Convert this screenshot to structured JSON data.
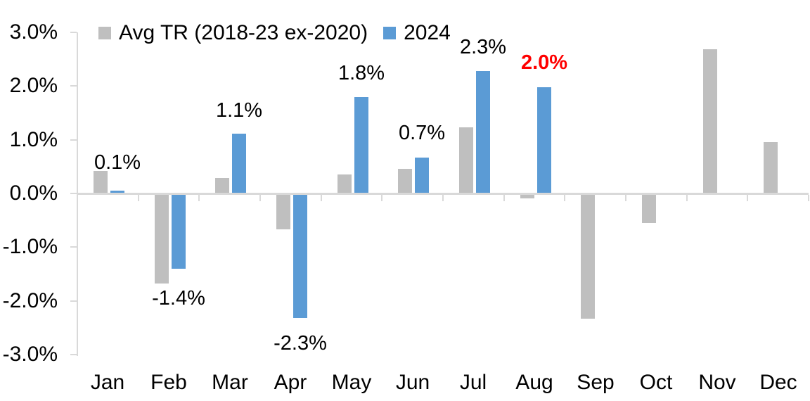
{
  "chart_data": {
    "type": "bar",
    "title": "",
    "categories": [
      "Jan",
      "Feb",
      "Mar",
      "Apr",
      "May",
      "Jun",
      "Jul",
      "Aug",
      "Sep",
      "Oct",
      "Nov",
      "Dec"
    ],
    "series": [
      {
        "name": "Avg TR (2018-23 ex-2020)",
        "color": "#BFBFBF",
        "values": [
          0.43,
          -1.67,
          0.3,
          -0.66,
          0.36,
          0.46,
          1.24,
          -0.08,
          -2.32,
          -0.54,
          2.69,
          0.96
        ]
      },
      {
        "name": "2024",
        "color": "#5B9BD5",
        "values": [
          0.06,
          -1.4,
          1.12,
          -2.31,
          1.8,
          0.68,
          2.29,
          1.99,
          null,
          null,
          null,
          null
        ]
      }
    ],
    "value_labels": [
      {
        "month": "Jan",
        "text": "0.1%",
        "side": "above",
        "gap": 3,
        "color": "#000000",
        "bold": false
      },
      {
        "month": "Feb",
        "text": "-1.4%",
        "side": "below",
        "gap": 10,
        "color": "#000000",
        "bold": false
      },
      {
        "month": "Mar",
        "text": "1.1%",
        "side": "above",
        "gap": 24,
        "color": "#000000",
        "bold": false
      },
      {
        "month": "Apr",
        "text": "-2.3%",
        "side": "below",
        "gap": 25,
        "color": "#000000",
        "bold": false
      },
      {
        "month": "May",
        "text": "1.8%",
        "side": "above",
        "gap": 25,
        "color": "#000000",
        "bold": false
      },
      {
        "month": "Jun",
        "text": "0.7%",
        "side": "above",
        "gap": 26,
        "color": "#000000",
        "bold": false
      },
      {
        "month": "Jul",
        "text": "2.3%",
        "side": "above",
        "gap": 25,
        "color": "#000000",
        "bold": false
      },
      {
        "month": "Aug",
        "text": "2.0%",
        "side": "above",
        "gap": 26,
        "color": "#FF0000",
        "bold": true
      }
    ],
    "yticks": [
      "3.0%",
      "2.0%",
      "1.0%",
      "0.0%",
      "-1.0%",
      "-2.0%",
      "-3.0%"
    ],
    "ylim": [
      -3,
      3
    ],
    "ytick_step": 1.0,
    "xlabel": "",
    "ylabel": "",
    "grid": false,
    "legend_position": "top-left",
    "axis_color": "#D9D9D9",
    "text_color": "#000000",
    "highlight_color": "#FF0000",
    "background": "#FFFFFF"
  }
}
